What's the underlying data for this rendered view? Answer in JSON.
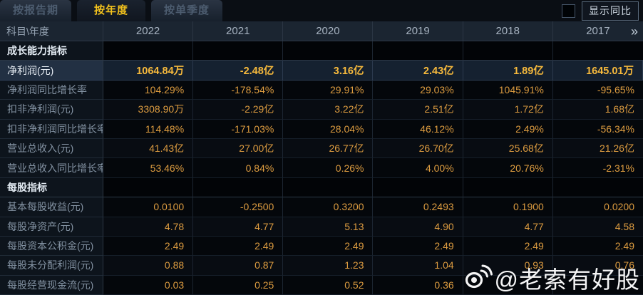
{
  "tabs": [
    {
      "label": "按报告期",
      "active": false
    },
    {
      "label": "按年度",
      "active": true
    },
    {
      "label": "按单季度",
      "active": false
    }
  ],
  "controls": {
    "show_yoy_label": "显示同比"
  },
  "watermark": {
    "text": "@老索有好股",
    "icon": "weibo-icon"
  },
  "table": {
    "corner_header": "科目\\年度",
    "year_columns": [
      "2022",
      "2021",
      "2020",
      "2019",
      "2018",
      "2017"
    ],
    "more_years_glyph": "»",
    "rows": [
      {
        "type": "section",
        "label": "成长能力指标",
        "values": [
          "",
          "",
          "",
          "",
          "",
          ""
        ]
      },
      {
        "type": "data",
        "highlight": true,
        "label": "净利润(元)",
        "values": [
          "1064.84万",
          "-2.48亿",
          "3.16亿",
          "2.43亿",
          "1.89亿",
          "1645.01万"
        ]
      },
      {
        "type": "data",
        "label": "净利润同比增长率",
        "values": [
          "104.29%",
          "-178.54%",
          "29.91%",
          "29.03%",
          "1045.91%",
          "-95.65%"
        ]
      },
      {
        "type": "data",
        "alt": true,
        "label": "扣非净利润(元)",
        "values": [
          "3308.90万",
          "-2.29亿",
          "3.22亿",
          "2.51亿",
          "1.72亿",
          "1.68亿"
        ]
      },
      {
        "type": "data",
        "label": "扣非净利润同比增长率",
        "values": [
          "114.48%",
          "-171.03%",
          "28.04%",
          "46.12%",
          "2.49%",
          "-56.34%"
        ]
      },
      {
        "type": "data",
        "alt": true,
        "label": "营业总收入(元)",
        "values": [
          "41.43亿",
          "27.00亿",
          "26.77亿",
          "26.70亿",
          "25.68亿",
          "21.26亿"
        ]
      },
      {
        "type": "data",
        "label": "营业总收入同比增长率",
        "values": [
          "53.46%",
          "0.84%",
          "0.26%",
          "4.00%",
          "20.76%",
          "-2.31%"
        ]
      },
      {
        "type": "section",
        "label": "每股指标",
        "values": [
          "",
          "",
          "",
          "",
          "",
          ""
        ]
      },
      {
        "type": "data",
        "label": "基本每股收益(元)",
        "values": [
          "0.0100",
          "-0.2500",
          "0.3200",
          "0.2493",
          "0.1900",
          "0.0200"
        ]
      },
      {
        "type": "data",
        "alt": true,
        "label": "每股净资产(元)",
        "values": [
          "4.78",
          "4.77",
          "5.13",
          "4.90",
          "4.77",
          "4.58"
        ]
      },
      {
        "type": "data",
        "label": "每股资本公积金(元)",
        "values": [
          "2.49",
          "2.49",
          "2.49",
          "2.49",
          "2.49",
          "2.49"
        ]
      },
      {
        "type": "data",
        "alt": true,
        "label": "每股未分配利润(元)",
        "values": [
          "0.88",
          "0.87",
          "1.23",
          "1.04",
          "0.93",
          "0.76"
        ]
      },
      {
        "type": "data",
        "label": "每股经营现金流(元)",
        "values": [
          "0.03",
          "0.25",
          "0.52",
          "0.36",
          "",
          ""
        ]
      }
    ]
  },
  "colors": {
    "accent_gold": "#f3c21d",
    "value_orange": "#dd9c40",
    "highlight_value_gold": "#f6b93c",
    "header_bg": "#1b2531",
    "highlight_row_bg": "#152130"
  }
}
